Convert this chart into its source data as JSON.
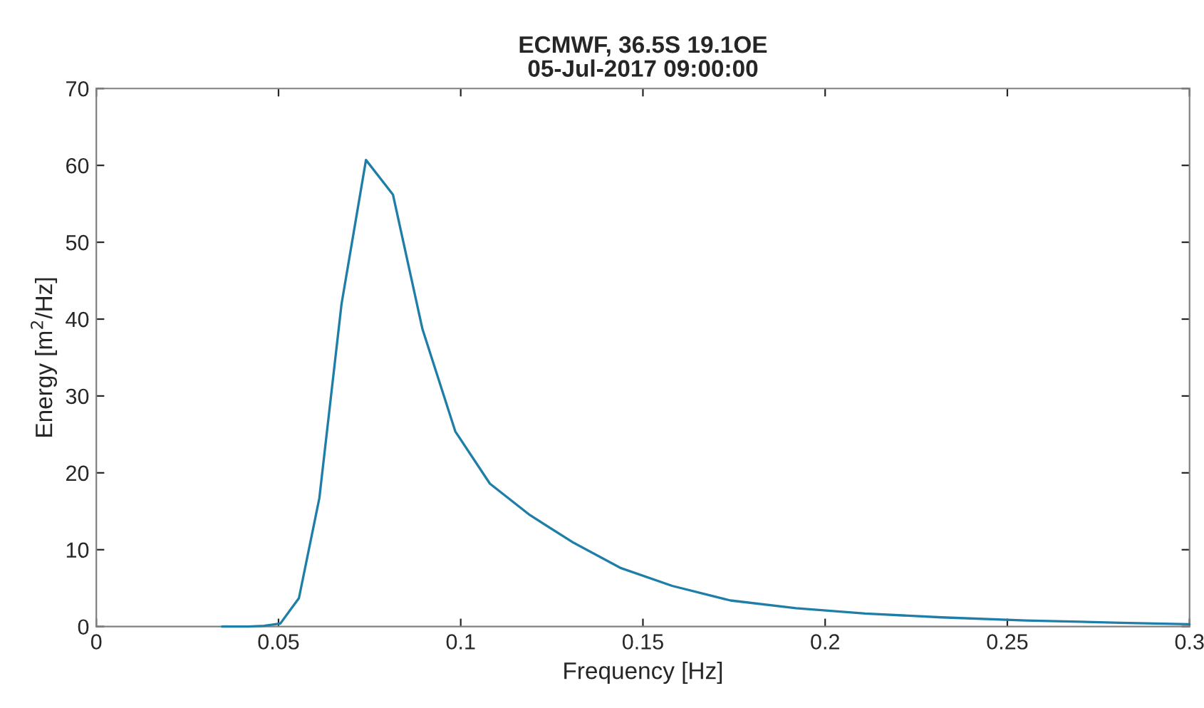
{
  "chart_data": {
    "type": "line",
    "title": "ECMWF, 36.5S 19.1OE\n05-Jul-2017 09:00:00",
    "xlabel": "Frequency [Hz]",
    "ylabel": "Energy [m$^{2}$/Hz]",
    "x": [
      0.0345,
      0.038,
      0.0418,
      0.046,
      0.0505,
      0.0556,
      0.0612,
      0.0673,
      0.074,
      0.0814,
      0.0895,
      0.0985,
      0.108,
      0.119,
      0.131,
      0.144,
      0.158,
      0.174,
      0.192,
      0.211,
      0.232,
      0.255,
      0.281,
      0.3
    ],
    "series": [
      {
        "color": "#1f7ea8",
        "values": [
          0,
          0,
          0,
          0.1,
          0.4,
          3.7,
          16.7,
          42,
          60.7,
          56.2,
          38.7,
          25.4,
          18.6,
          14.5,
          10.9,
          7.6,
          5.3,
          3.4,
          2.4,
          1.7,
          1.2,
          0.8,
          0.5,
          0.3
        ]
      }
    ],
    "xlim": [
      0,
      0.3
    ],
    "xticks": [
      0,
      0.05,
      0.1,
      0.15,
      0.2,
      0.25,
      0.3
    ],
    "ylim": [
      0,
      70
    ],
    "yticks": [
      0,
      10,
      20,
      30,
      40,
      50,
      60,
      70
    ],
    "grid": false,
    "legend": false,
    "marker": "none",
    "line_style": "solid"
  }
}
